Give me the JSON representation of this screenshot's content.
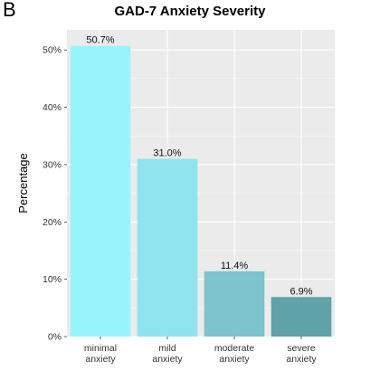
{
  "panel_label": "B",
  "chart_data": {
    "type": "bar",
    "title": "GAD-7 Anxiety Severity",
    "xlabel": "",
    "ylabel": "Percentage",
    "categories": [
      [
        "minimal",
        "anxiety"
      ],
      [
        "mild",
        "anxiety"
      ],
      [
        "moderate",
        "anxiety"
      ],
      [
        "severe",
        "anxiety"
      ]
    ],
    "values": [
      50.7,
      31.0,
      11.4,
      6.9
    ],
    "value_labels": [
      "50.7%",
      "31.0%",
      "11.4%",
      "6.9%"
    ],
    "colors": [
      "#98f5fb",
      "#8fe3ec",
      "#7ec4cd",
      "#5fa3a6"
    ],
    "ylim": [
      0,
      53.5
    ],
    "yticks": [
      0,
      10,
      20,
      30,
      40,
      50
    ],
    "ytick_labels": [
      "0%",
      "10%",
      "20%",
      "30%",
      "40%",
      "50%"
    ],
    "panel_background": "#ebebeb",
    "grid": true,
    "legend": "none"
  }
}
